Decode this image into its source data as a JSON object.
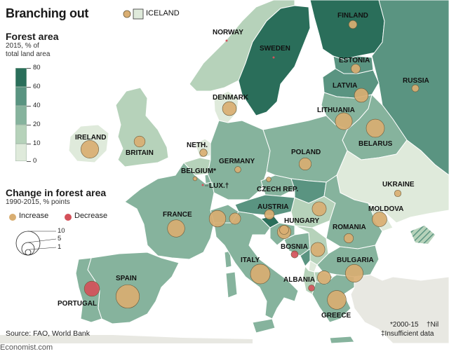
{
  "title": "Branching out",
  "legend": {
    "forest_heading": "Forest area",
    "forest_sub_1": "2015, % of",
    "forest_sub_2": "total land area",
    "scale_ticks": [
      "80",
      "60",
      "40",
      "20",
      "10",
      "0"
    ],
    "scale_colors": [
      "#2a6e5a",
      "#5a9481",
      "#86b39d",
      "#b6d2ba",
      "#dfeadb"
    ],
    "change_heading": "Change in forest area",
    "change_sub": "1990-2015, % points",
    "increase_label": "Increase",
    "decrease_label": "Decrease",
    "increase_color": "#d9ae72",
    "decrease_color": "#d4515a",
    "size_ticks": [
      "10",
      "5",
      "1"
    ],
    "iceland_label": "ICELAND"
  },
  "notes": {
    "asterisk": "*2000-15",
    "dagger_nil": "†Nil",
    "insufficient": "‡Insufficient data"
  },
  "source": "Source: FAO, World Bank",
  "brand": "Economist.com",
  "countries": [
    {
      "name": "FINLAND",
      "forest": 73,
      "change": 1.2,
      "sign": "increase"
    },
    {
      "name": "NORWAY",
      "forest": 28,
      "change": null,
      "sign": "nil"
    },
    {
      "name": "SWEDEN",
      "forest": 69,
      "change": null,
      "sign": "nil"
    },
    {
      "name": "ESTONIA",
      "forest": 52,
      "change": 1.5,
      "sign": "increase"
    },
    {
      "name": "RUSSIA",
      "forest": 50,
      "change": 0.9,
      "sign": "increase"
    },
    {
      "name": "LATVIA",
      "forest": 54,
      "change": 3.5,
      "sign": "increase"
    },
    {
      "name": "DENMARK",
      "forest": 15,
      "change": 3.5,
      "sign": "increase"
    },
    {
      "name": "LITHUANIA",
      "forest": 35,
      "change": 5.2,
      "sign": "increase"
    },
    {
      "name": "IRELAND",
      "forest": 11,
      "change": 5.7,
      "sign": "increase"
    },
    {
      "name": "BRITAIN",
      "forest": 13,
      "change": 2.2,
      "sign": "increase"
    },
    {
      "name": "BELARUS",
      "forest": 42,
      "change": 6.0,
      "sign": "increase"
    },
    {
      "name": "NETH.",
      "forest": 11,
      "change": 1.0,
      "sign": "increase"
    },
    {
      "name": "GERMANY",
      "forest": 33,
      "change": 0.7,
      "sign": "increase"
    },
    {
      "name": "POLAND",
      "forest": 31,
      "change": 2.7,
      "sign": "increase"
    },
    {
      "name": "BELGIUM*",
      "forest": 23,
      "change": 0.3,
      "sign": "increase"
    },
    {
      "name": "LUX.†",
      "forest": 34,
      "change": null,
      "sign": "nil"
    },
    {
      "name": "UKRAINE",
      "forest": 17,
      "change": 0.8,
      "sign": "increase"
    },
    {
      "name": "CZECH REP.",
      "forest": 35,
      "change": 0.4,
      "sign": "increase"
    },
    {
      "name": "AUSTRIA",
      "forest": 47,
      "change": 1.7,
      "sign": "increase"
    },
    {
      "name": "MOLDOVA",
      "forest": 12,
      "change": 3.9,
      "sign": "increase"
    },
    {
      "name": "FRANCE",
      "forest": 31,
      "change": 5.4,
      "sign": "increase"
    },
    {
      "name": "HUNGARY",
      "forest": 23,
      "change": 3.3,
      "sign": "increase"
    },
    {
      "name": "ROMANIA",
      "forest": 30,
      "change": 1.6,
      "sign": "increase"
    },
    {
      "name": "BOSNIA",
      "forest": 43,
      "change": -0.9,
      "sign": "decrease"
    },
    {
      "name": "ITALY",
      "forest": 32,
      "change": 7.0,
      "sign": "increase"
    },
    {
      "name": "BULGARIA",
      "forest": 36,
      "change": 5.7,
      "sign": "increase"
    },
    {
      "name": "SPAIN",
      "forest": 37,
      "change": 10.0,
      "sign": "increase"
    },
    {
      "name": "ALBANIA",
      "forest": 28,
      "change": -0.7,
      "sign": "decrease"
    },
    {
      "name": "PORTUGAL",
      "forest": 35,
      "change": -4.2,
      "sign": "decrease"
    },
    {
      "name": "GREECE",
      "forest": 31,
      "change": 6.4,
      "sign": "increase"
    }
  ]
}
